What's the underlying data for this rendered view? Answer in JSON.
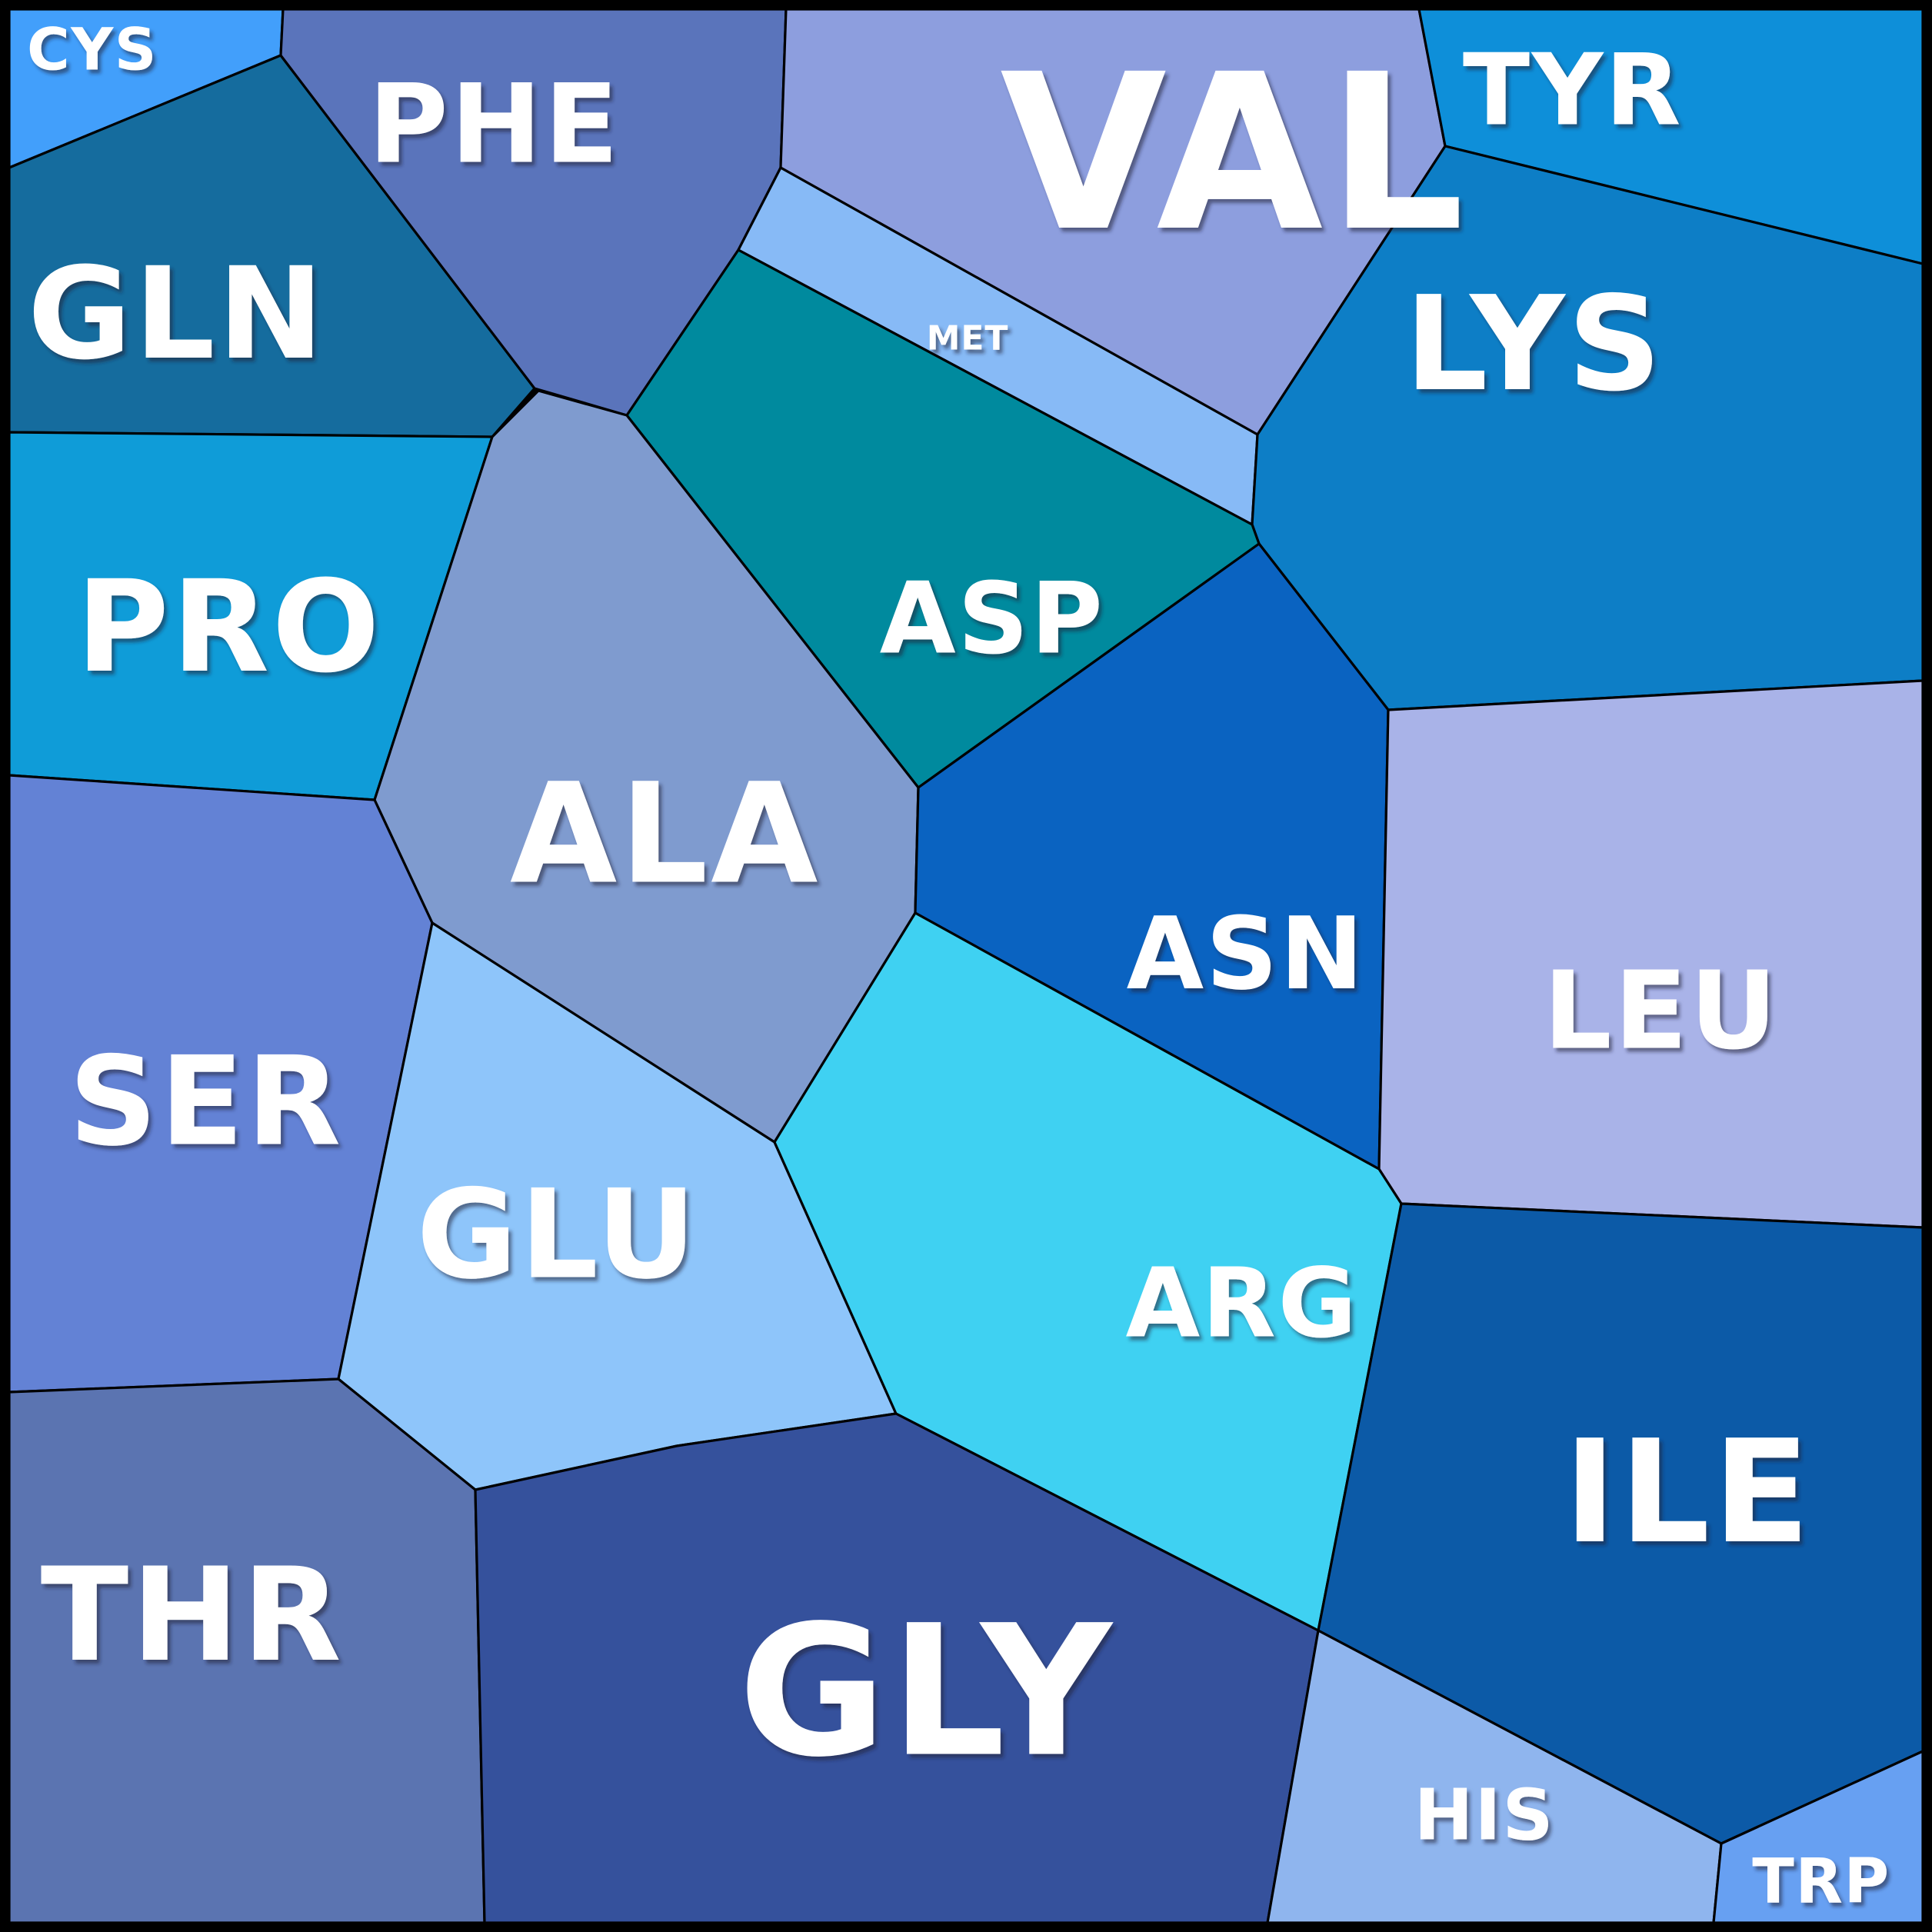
{
  "chart_data": {
    "type": "voronoi-treemap",
    "title": "",
    "frame_color": "#000000",
    "cell_border_color": "#000000",
    "cell_border_width": 3.2,
    "label_color": "#ffffff",
    "canvas_size": 2512,
    "inner_frame": [
      12,
      12,
      2500,
      2500
    ],
    "legend": "none",
    "cells": [
      {
        "id": "cys",
        "label": "CYS",
        "color": "#429ffb",
        "points": [
          [
            12,
            12
          ],
          [
            368,
            12
          ],
          [
            365,
            72
          ],
          [
            12,
            218
          ]
        ],
        "label_pos": [
          120,
          64
        ],
        "font_size": 76
      },
      {
        "id": "gln",
        "label": "GLN",
        "color": "#156c9e",
        "points": [
          [
            12,
            218
          ],
          [
            365,
            72
          ],
          [
            695,
            505
          ],
          [
            640,
            568
          ],
          [
            12,
            562
          ]
        ],
        "label_pos": [
          230,
          408
        ],
        "font_size": 165
      },
      {
        "id": "phe",
        "label": "PHE",
        "color": "#5a74bb",
        "points": [
          [
            368,
            12
          ],
          [
            1022,
            12
          ],
          [
            1015,
            218
          ],
          [
            960,
            325
          ],
          [
            815,
            540
          ],
          [
            695,
            505
          ],
          [
            365,
            72
          ]
        ],
        "label_pos": [
          643,
          162
        ],
        "font_size": 142
      },
      {
        "id": "val",
        "label": "VAL",
        "color": "#8d9ede",
        "points": [
          [
            1022,
            12
          ],
          [
            1845,
            12
          ],
          [
            1879,
            190
          ],
          [
            1635,
            565
          ],
          [
            1015,
            218
          ]
        ],
        "label_pos": [
          1605,
          200
        ],
        "font_size": 280
      },
      {
        "id": "tyr",
        "label": "TYR",
        "color": "#0e8fd9",
        "points": [
          [
            1845,
            12
          ],
          [
            2500,
            12
          ],
          [
            2500,
            343
          ],
          [
            1879,
            190
          ]
        ],
        "label_pos": [
          2045,
          118
        ],
        "font_size": 128
      },
      {
        "id": "met",
        "label": "MET",
        "color": "#87baf6",
        "points": [
          [
            1015,
            218
          ],
          [
            1635,
            565
          ],
          [
            1628,
            682
          ],
          [
            960,
            325
          ]
        ],
        "label_pos": [
          1258,
          440
        ],
        "font_size": 44
      },
      {
        "id": "lys",
        "label": "LYS",
        "color": "#0d7ec6",
        "points": [
          [
            1879,
            190
          ],
          [
            2500,
            343
          ],
          [
            2500,
            885
          ],
          [
            1805,
            923
          ],
          [
            1637,
            707
          ],
          [
            1628,
            682
          ],
          [
            1635,
            565
          ]
        ],
        "label_pos": [
          1995,
          448
        ],
        "font_size": 170
      },
      {
        "id": "asp",
        "label": "ASP",
        "color": "#008a9e",
        "points": [
          [
            960,
            325
          ],
          [
            1628,
            682
          ],
          [
            1637,
            707
          ],
          [
            1194,
            1024
          ],
          [
            815,
            540
          ]
        ],
        "label_pos": [
          1290,
          805
        ],
        "font_size": 128
      },
      {
        "id": "pro",
        "label": "PRO",
        "color": "#0f9cd8",
        "points": [
          [
            12,
            562
          ],
          [
            640,
            568
          ],
          [
            487,
            1040
          ],
          [
            12,
            1008
          ]
        ],
        "label_pos": [
          298,
          815
        ],
        "font_size": 165
      },
      {
        "id": "ala",
        "label": "ALA",
        "color": "#7f9bcf",
        "points": [
          [
            700,
            508
          ],
          [
            815,
            540
          ],
          [
            1194,
            1024
          ],
          [
            1190,
            1187
          ],
          [
            1007,
            1485
          ],
          [
            562,
            1200
          ],
          [
            487,
            1040
          ],
          [
            640,
            568
          ]
        ],
        "label_pos": [
          865,
          1085
        ],
        "font_size": 180
      },
      {
        "id": "asn",
        "label": "ASN",
        "color": "#0a63c1",
        "points": [
          [
            1194,
            1024
          ],
          [
            1637,
            707
          ],
          [
            1805,
            923
          ],
          [
            1793,
            1520
          ],
          [
            1190,
            1187
          ]
        ],
        "label_pos": [
          1620,
          1240
        ],
        "font_size": 130
      },
      {
        "id": "leu",
        "label": "LEU",
        "color": "#a9b3e8",
        "points": [
          [
            1805,
            923
          ],
          [
            2500,
            885
          ],
          [
            2500,
            1596
          ],
          [
            1822,
            1565
          ],
          [
            1793,
            1520
          ]
        ],
        "label_pos": [
          2160,
          1315
        ],
        "font_size": 140
      },
      {
        "id": "ser",
        "label": "SER",
        "color": "#6382d5",
        "points": [
          [
            12,
            1008
          ],
          [
            487,
            1040
          ],
          [
            562,
            1200
          ],
          [
            440,
            1793
          ],
          [
            12,
            1810
          ]
        ],
        "label_pos": [
          268,
          1432
        ],
        "font_size": 160
      },
      {
        "id": "glu",
        "label": "GLU",
        "color": "#8ec5fa",
        "points": [
          [
            562,
            1200
          ],
          [
            1007,
            1485
          ],
          [
            1165,
            1838
          ],
          [
            880,
            1880
          ],
          [
            618,
            1937
          ],
          [
            440,
            1793
          ]
        ],
        "label_pos": [
          725,
          1605
        ],
        "font_size": 160
      },
      {
        "id": "arg",
        "label": "ARG",
        "color": "#3fd1f2",
        "points": [
          [
            1190,
            1187
          ],
          [
            1793,
            1520
          ],
          [
            1822,
            1565
          ],
          [
            1714,
            2120
          ],
          [
            1165,
            1838
          ],
          [
            1007,
            1485
          ]
        ],
        "label_pos": [
          1615,
          1695
        ],
        "font_size": 125
      },
      {
        "id": "ile",
        "label": "ILE",
        "color": "#0c5aa7",
        "points": [
          [
            1822,
            1565
          ],
          [
            2500,
            1596
          ],
          [
            2500,
            2277
          ],
          [
            2238,
            2397
          ],
          [
            1714,
            2120
          ]
        ],
        "label_pos": [
          2195,
          1940
        ],
        "font_size": 185
      },
      {
        "id": "thr",
        "label": "THR",
        "color": "#5b74b1",
        "points": [
          [
            12,
            1810
          ],
          [
            440,
            1793
          ],
          [
            618,
            1937
          ],
          [
            630,
            2500
          ],
          [
            12,
            2500
          ]
        ],
        "label_pos": [
          250,
          2100
        ],
        "font_size": 168
      },
      {
        "id": "gly",
        "label": "GLY",
        "color": "#35519c",
        "points": [
          [
            618,
            1937
          ],
          [
            880,
            1880
          ],
          [
            1165,
            1838
          ],
          [
            1714,
            2120
          ],
          [
            1648,
            2500
          ],
          [
            630,
            2500
          ]
        ],
        "label_pos": [
          1205,
          2200
        ],
        "font_size": 235
      },
      {
        "id": "his",
        "label": "HIS",
        "color": "#8fb5ee",
        "points": [
          [
            1714,
            2120
          ],
          [
            2238,
            2397
          ],
          [
            2228,
            2500
          ],
          [
            1648,
            2500
          ]
        ],
        "label_pos": [
          1930,
          2360
        ],
        "font_size": 92
      },
      {
        "id": "trp",
        "label": "TRP",
        "color": "#67a0f2",
        "points": [
          [
            2238,
            2397
          ],
          [
            2500,
            2277
          ],
          [
            2500,
            2500
          ],
          [
            2228,
            2500
          ]
        ],
        "label_pos": [
          2368,
          2446
        ],
        "font_size": 80
      }
    ]
  }
}
